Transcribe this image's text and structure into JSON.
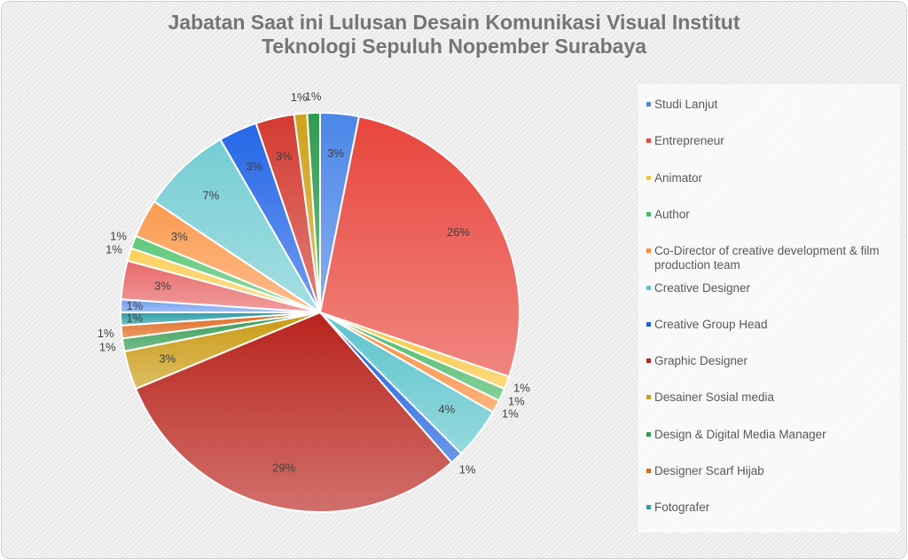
{
  "chart_data": {
    "type": "pie",
    "title": "Jabatan Saat ini Lulusan Desain Komunikasi Visual Institut Teknologi Sepuluh Nopember Surabaya",
    "title_lines": [
      "Jabatan Saat ini Lulusan Desain Komunikasi Visual Institut",
      "Teknologi Sepuluh Nopember Surabaya"
    ],
    "legend_position": "right",
    "slices": [
      {
        "name": "Studi Lanjut",
        "value": 3,
        "label": "3%",
        "color": "#4a86e8"
      },
      {
        "name": "Entrepreneur",
        "value": 26,
        "label": "26%",
        "color": "#e8453c"
      },
      {
        "name": "Animator",
        "value": 1,
        "label": "1%",
        "color": "#f9c63a"
      },
      {
        "name": "Author",
        "value": 1,
        "label": "1%",
        "color": "#43b863"
      },
      {
        "name": "Co-Director of creative development & film production team",
        "value": 1,
        "label": "1%",
        "color": "#fa8a3a"
      },
      {
        "name": "Creative Designer",
        "value": 4,
        "label": "4%",
        "color": "#5cc4cc"
      },
      {
        "name": "Creative Group Head",
        "value": 1,
        "label": "1%",
        "color": "#1a5fe0"
      },
      {
        "name": "Graphic Designer",
        "value": 29,
        "label": "29%",
        "color": "#b8231c"
      },
      {
        "name": "Desainer Sosial media",
        "value": 3,
        "label": "3%",
        "color": "#c99a10"
      },
      {
        "name": "Design & Digital Media Manager",
        "value": 1,
        "label": "1%",
        "color": "#2e9a4c"
      },
      {
        "name": "Designer Scarf Hijab",
        "value": 1,
        "label": "1%",
        "color": "#e0661a"
      },
      {
        "name": "Fotografer",
        "value": 1,
        "label": "1%",
        "color": "#2f9ea6"
      },
      {
        "name": "",
        "value": 1,
        "label": "1%",
        "color": "#6f9ef0"
      },
      {
        "name": "",
        "value": 3,
        "label": "3%",
        "color": "#e86a6a"
      },
      {
        "name": "",
        "value": 1,
        "label": "1%",
        "color": "#fbd05a"
      },
      {
        "name": "",
        "value": 1,
        "label": "1%",
        "color": "#5cc878"
      },
      {
        "name": "",
        "value": 3,
        "label": "3%",
        "color": "#fb9a50"
      },
      {
        "name": "",
        "value": 7,
        "label": "7%",
        "color": "#74cdd3"
      },
      {
        "name": "",
        "value": 3,
        "label": "3%",
        "color": "#2466e6"
      },
      {
        "name": "",
        "value": 3,
        "label": "3%",
        "color": "#d23a30"
      },
      {
        "name": "",
        "value": 1,
        "label": "1%",
        "color": "#cfa21a"
      },
      {
        "name": "",
        "value": 1,
        "label": "1%",
        "color": "#2f9a50"
      }
    ]
  }
}
